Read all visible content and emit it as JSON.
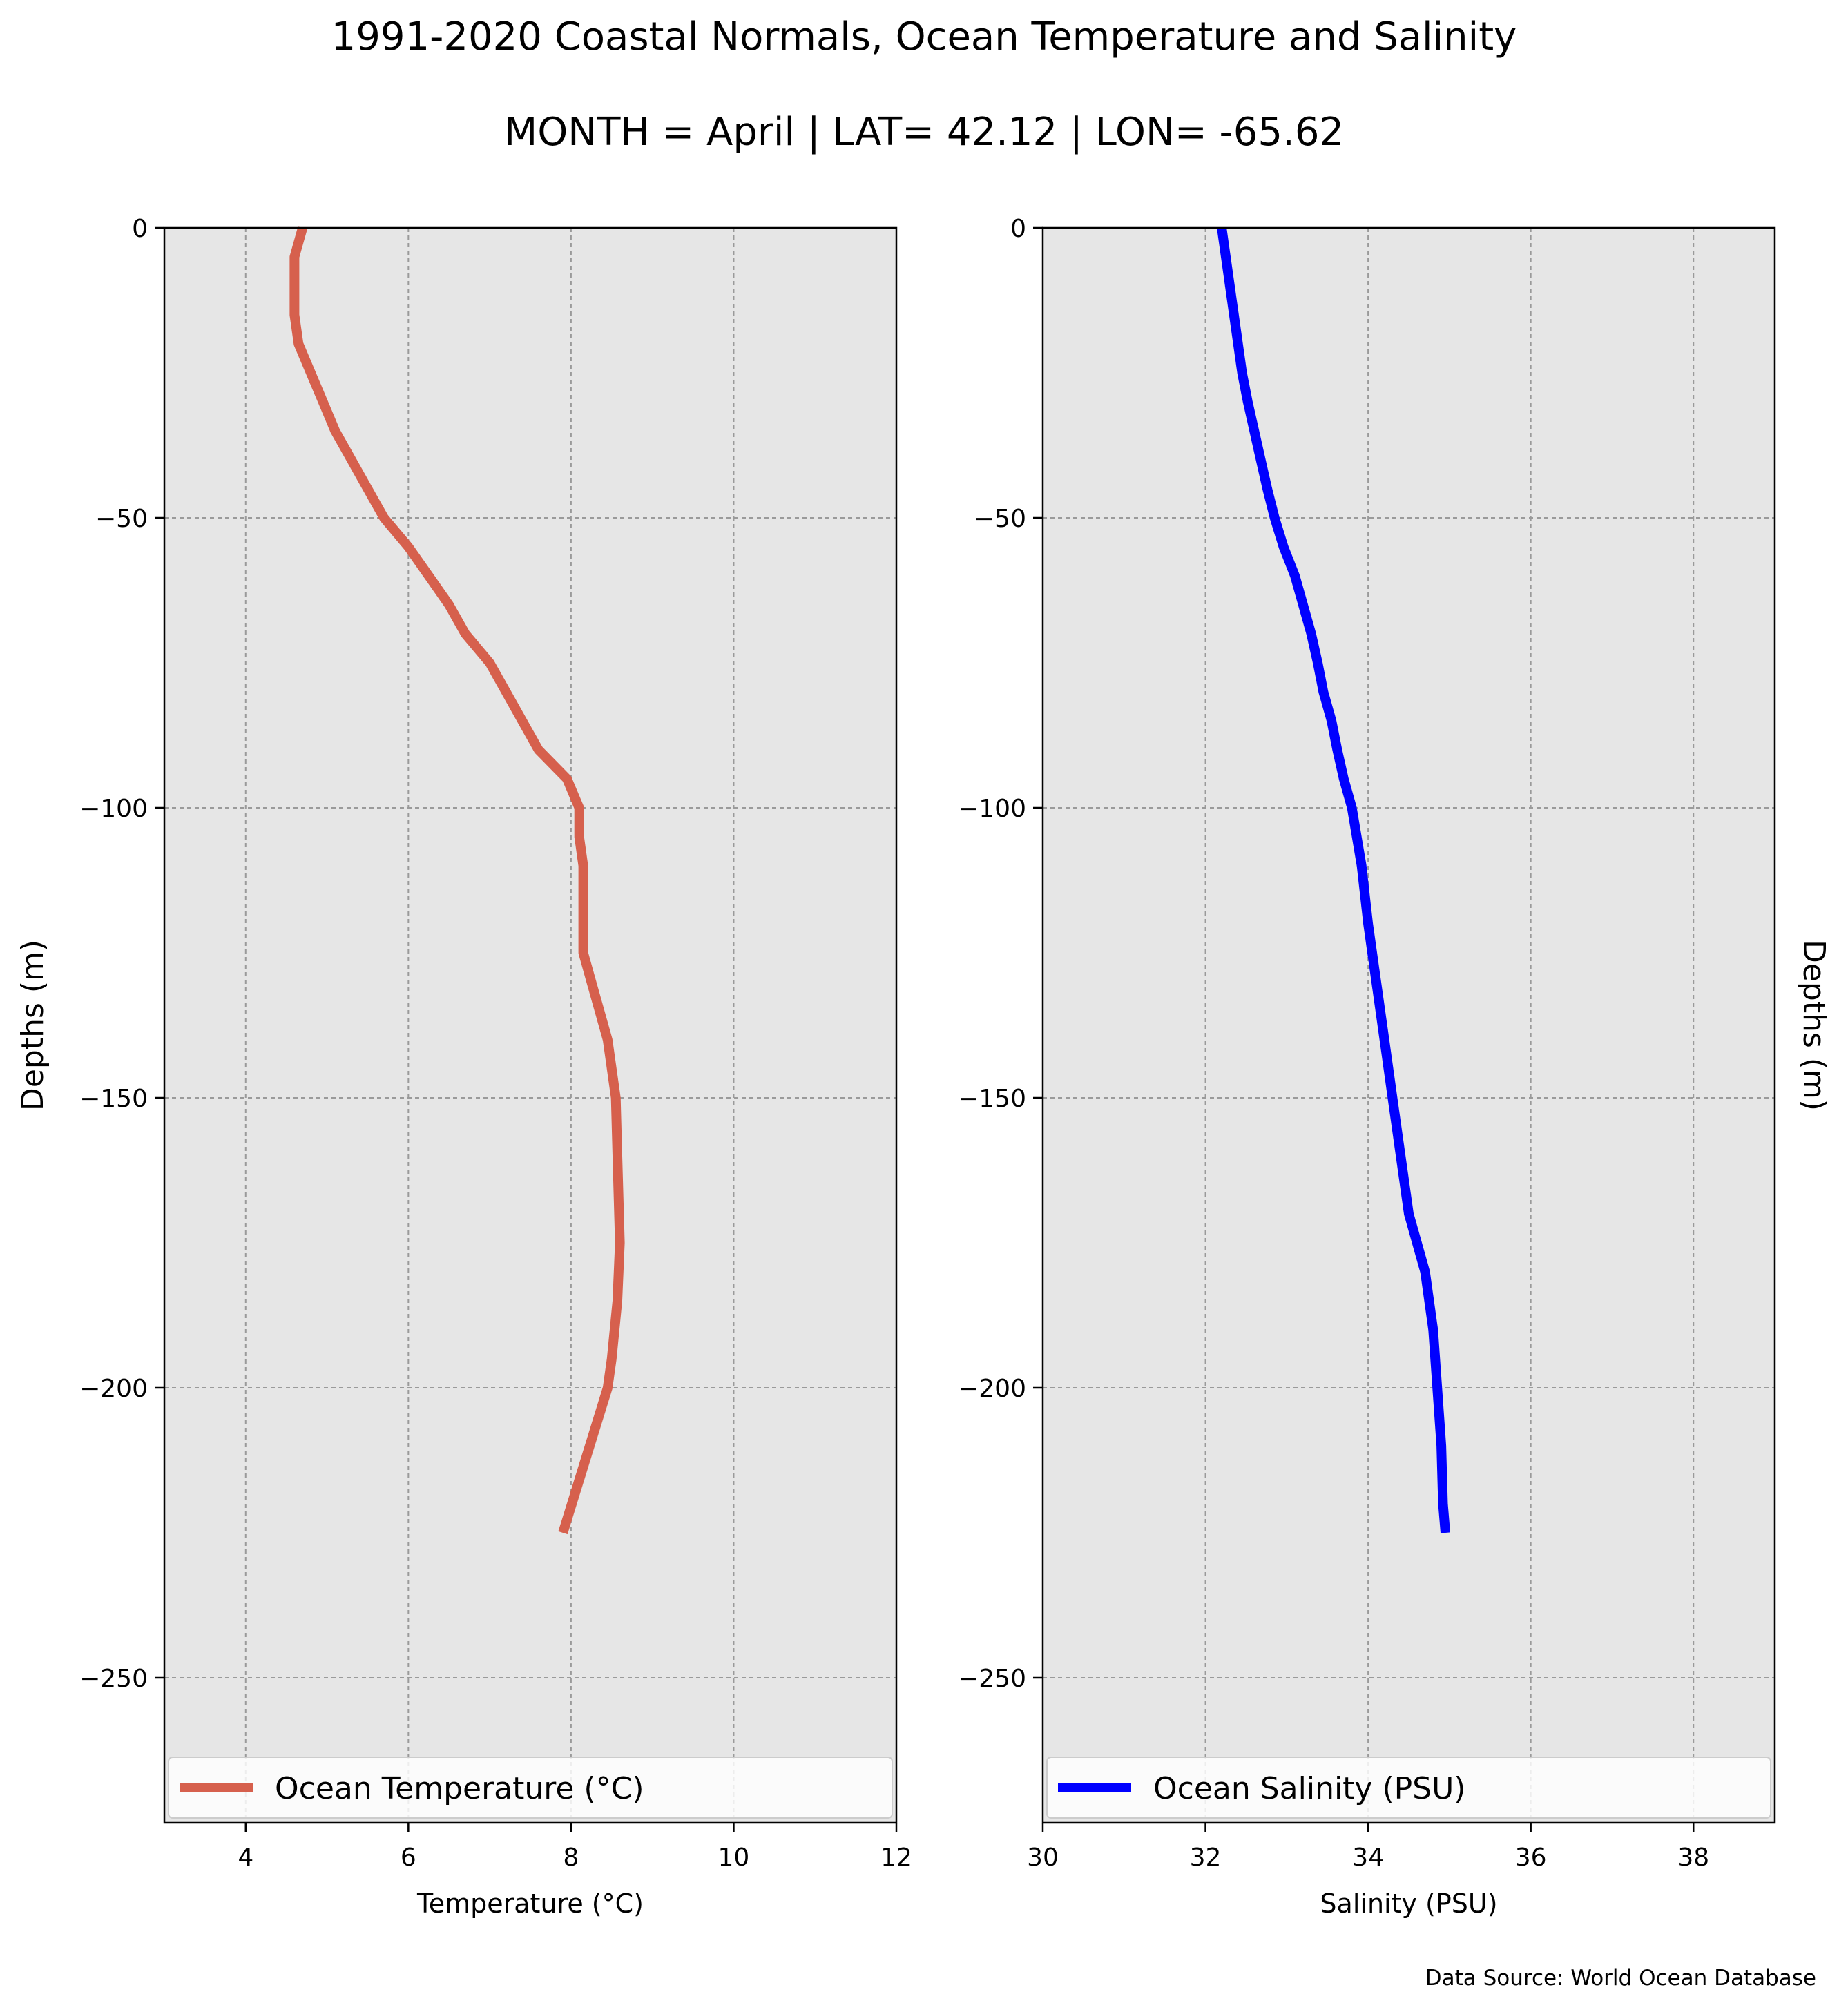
{
  "figure": {
    "title": "1991-2020 Coastal Normals, Ocean Temperature and Salinity",
    "subtitle": "MONTH = April | LAT= 42.12 | LON= -65.62",
    "source_note": "Data Source: World Ocean Database"
  },
  "chart_data": [
    {
      "type": "line",
      "xlabel": "Temperature ($^\\circ$C)",
      "ylabel": "Depths (m)",
      "xlim": [
        3,
        12
      ],
      "ylim": [
        -275,
        0
      ],
      "xticks": [
        4,
        6,
        8,
        10,
        12
      ],
      "xticklabels": [
        "4",
        "6",
        "8",
        "10",
        "12"
      ],
      "yticks": [
        0,
        -50,
        -100,
        -150,
        -200,
        -250
      ],
      "yticklabels": [
        "0",
        "−50",
        "−100",
        "−150",
        "−200",
        "−250"
      ],
      "grid": true,
      "background": "#e6e6e6",
      "legend": {
        "placement": "lower center",
        "label": "Ocean Temperature ($^\\circ$C)"
      },
      "series": [
        {
          "name": "Ocean Temperature ($^\\circ$C)",
          "color": "#d6604d",
          "x": [
            4.7,
            4.6,
            4.6,
            4.6,
            4.65,
            4.8,
            4.95,
            5.1,
            5.3,
            5.5,
            5.7,
            6.0,
            6.25,
            6.5,
            6.7,
            7.0,
            7.2,
            7.4,
            7.6,
            7.95,
            8.1,
            8.1,
            8.15,
            8.15,
            8.15,
            8.15,
            8.25,
            8.35,
            8.45,
            8.55,
            8.57,
            8.6,
            8.57,
            8.5,
            8.45,
            7.9
          ],
          "y": [
            0,
            -5,
            -10,
            -15,
            -20,
            -25,
            -30,
            -35,
            -40,
            -45,
            -50,
            -55,
            -60,
            -65,
            -70,
            -75,
            -80,
            -85,
            -90,
            -95,
            -100,
            -105,
            -110,
            -115,
            -120,
            -125,
            -130,
            -135,
            -140,
            -150,
            -160,
            -175,
            -185,
            -195,
            -200,
            -225
          ]
        }
      ]
    },
    {
      "type": "line",
      "xlabel": "Salinity (PSU)",
      "ylabel": "Depths (m)",
      "xlim": [
        30,
        39
      ],
      "ylim": [
        -275,
        0
      ],
      "xticks": [
        30,
        32,
        34,
        36,
        38
      ],
      "xticklabels": [
        "30",
        "32",
        "34",
        "36",
        "38"
      ],
      "yticks": [
        0,
        -50,
        -100,
        -150,
        -200,
        -250
      ],
      "yticklabels": [
        "0",
        "−50",
        "−100",
        "−150",
        "−200",
        "−250"
      ],
      "grid": true,
      "background": "#e6e6e6",
      "legend": {
        "placement": "lower center",
        "label": "Ocean Salinity (PSU)"
      },
      "series": [
        {
          "name": "Ocean Salinity (PSU)",
          "color": "#0000ff",
          "x": [
            32.2,
            32.25,
            32.3,
            32.35,
            32.4,
            32.45,
            32.52,
            32.6,
            32.68,
            32.76,
            32.85,
            32.96,
            33.1,
            33.2,
            33.3,
            33.38,
            33.45,
            33.55,
            33.62,
            33.7,
            33.8,
            33.92,
            34.0,
            34.05,
            34.1,
            34.2,
            34.3,
            34.4,
            34.5,
            34.6,
            34.7,
            34.8,
            34.85,
            34.9,
            34.92,
            34.95
          ],
          "y": [
            0,
            -5,
            -10,
            -15,
            -20,
            -25,
            -30,
            -35,
            -40,
            -45,
            -50,
            -55,
            -60,
            -65,
            -70,
            -75,
            -80,
            -85,
            -90,
            -95,
            -100,
            -110,
            -120,
            -125,
            -130,
            -140,
            -150,
            -160,
            -170,
            -175,
            -180,
            -190,
            -200,
            -210,
            -220,
            -225
          ]
        }
      ]
    }
  ]
}
